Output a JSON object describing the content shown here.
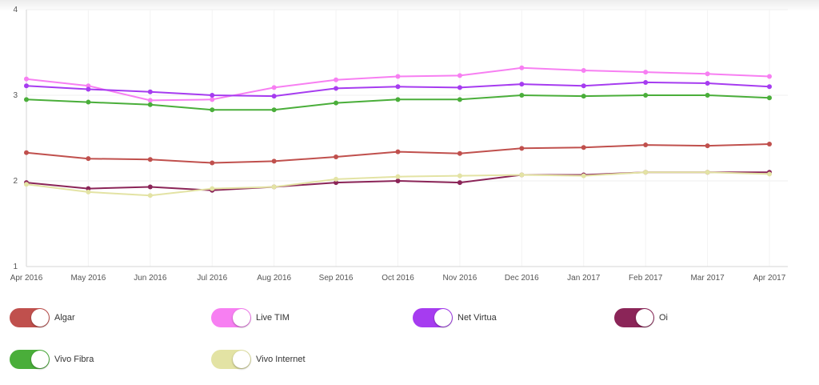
{
  "chart_data": {
    "type": "line",
    "title": "",
    "xlabel": "",
    "ylabel": "",
    "ylim": [
      1,
      4
    ],
    "yticks": [
      1,
      2,
      3,
      4
    ],
    "grid": true,
    "legend_placement": "bottom",
    "categories": [
      "Apr 2016",
      "May 2016",
      "Jun 2016",
      "Jul 2016",
      "Aug 2016",
      "Sep 2016",
      "Oct 2016",
      "Nov 2016",
      "Dec 2016",
      "Jan 2017",
      "Feb 2017",
      "Mar 2017",
      "Apr 2017"
    ],
    "series": [
      {
        "name": "Algar",
        "color": "#c0504d",
        "values": [
          2.33,
          2.26,
          2.25,
          2.21,
          2.23,
          2.28,
          2.34,
          2.32,
          2.38,
          2.39,
          2.42,
          2.41,
          2.43
        ]
      },
      {
        "name": "Live TIM",
        "color": "#f77ff2",
        "values": [
          3.19,
          3.11,
          2.94,
          2.95,
          3.09,
          3.18,
          3.22,
          3.23,
          3.32,
          3.29,
          3.27,
          3.25,
          3.22
        ]
      },
      {
        "name": "Net Virtua",
        "color": "#a63cf0",
        "values": [
          3.11,
          3.07,
          3.04,
          3.0,
          2.99,
          3.08,
          3.1,
          3.09,
          3.13,
          3.11,
          3.15,
          3.14,
          3.1
        ]
      },
      {
        "name": "Oi",
        "color": "#8b2558",
        "values": [
          1.98,
          1.91,
          1.93,
          1.89,
          1.93,
          1.98,
          2.0,
          1.98,
          2.07,
          2.07,
          2.1,
          2.1,
          2.1
        ]
      },
      {
        "name": "Vivo Fibra",
        "color": "#4aae3a",
        "values": [
          2.95,
          2.92,
          2.89,
          2.83,
          2.83,
          2.91,
          2.95,
          2.95,
          3.0,
          2.99,
          3.0,
          3.0,
          2.97
        ]
      },
      {
        "name": "Vivo Internet",
        "color": "#e3e3a4",
        "values": [
          1.96,
          1.87,
          1.83,
          1.91,
          1.93,
          2.02,
          2.05,
          2.06,
          2.07,
          2.06,
          2.1,
          2.1,
          2.08
        ]
      }
    ]
  }
}
